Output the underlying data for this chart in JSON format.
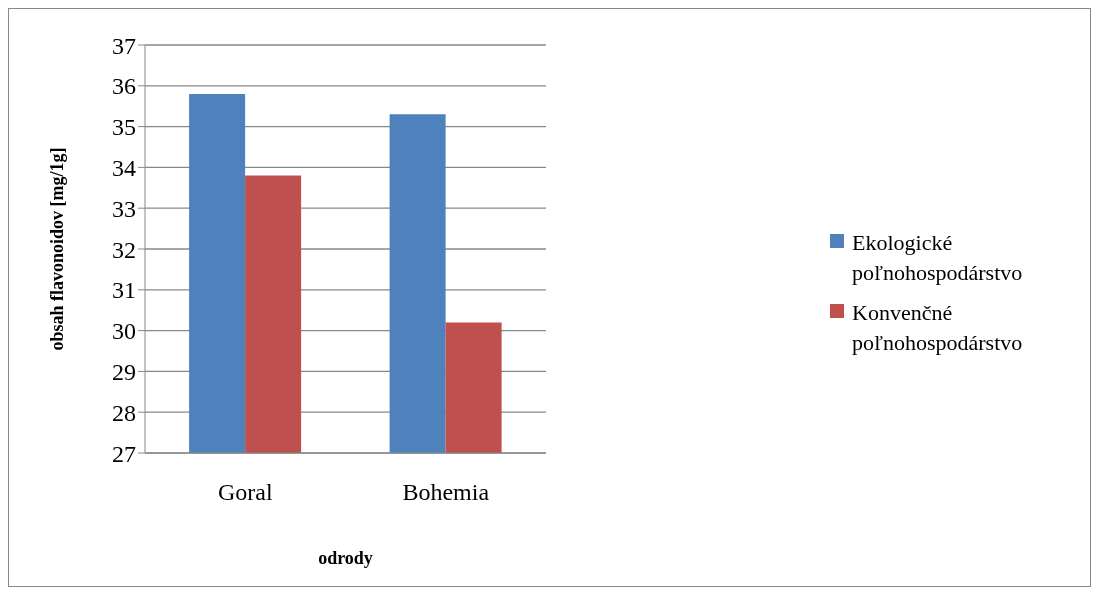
{
  "chart_data": {
    "type": "bar",
    "xlabel": "odrody",
    "ylabel": "obsah flavonoidov [mg/1g]",
    "categories": [
      "Goral",
      "Bohemia"
    ],
    "series": [
      {
        "name": "Ekologické poľnohospodárstvo",
        "color": "#4f81bd",
        "values": [
          35.8,
          35.3
        ]
      },
      {
        "name": "Konvenčné poľnohospodárstvo",
        "color": "#c0504d",
        "values": [
          33.8,
          30.2
        ]
      }
    ],
    "ylim": [
      27,
      37
    ],
    "yticks": [
      27,
      28,
      29,
      30,
      31,
      32,
      33,
      34,
      35,
      36,
      37
    ],
    "grid": "y",
    "legend": "right"
  }
}
